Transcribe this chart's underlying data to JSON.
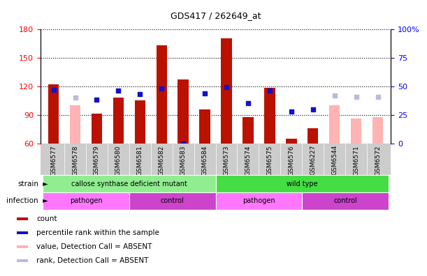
{
  "title": "GDS417 / 262649_at",
  "samples": [
    "GSM6577",
    "GSM6578",
    "GSM6579",
    "GSM6580",
    "GSM6581",
    "GSM6582",
    "GSM6583",
    "GSM6584",
    "GSM6573",
    "GSM6574",
    "GSM6575",
    "GSM6576",
    "GSM6227",
    "GSM6544",
    "GSM6571",
    "GSM6572"
  ],
  "red_values": [
    122,
    0,
    91,
    108,
    105,
    163,
    127,
    96,
    170,
    88,
    118,
    65,
    76,
    0,
    0,
    0
  ],
  "pink_values": [
    0,
    100,
    0,
    0,
    0,
    0,
    0,
    0,
    0,
    0,
    0,
    0,
    0,
    100,
    86,
    88
  ],
  "blue_values": [
    47,
    0,
    38,
    46,
    43,
    48,
    0,
    44,
    49,
    35,
    46,
    28,
    30,
    0,
    0,
    0
  ],
  "lblue_values": [
    0,
    40,
    0,
    0,
    0,
    0,
    0,
    0,
    0,
    0,
    0,
    0,
    0,
    42,
    41,
    41
  ],
  "absent_red": [
    false,
    true,
    false,
    false,
    false,
    false,
    false,
    false,
    false,
    false,
    false,
    false,
    false,
    true,
    true,
    true
  ],
  "ylim_left": [
    60,
    180
  ],
  "ylim_right": [
    0,
    100
  ],
  "yticks_left": [
    60,
    90,
    120,
    150,
    180
  ],
  "yticks_right": [
    0,
    25,
    50,
    75,
    100
  ],
  "strain_groups": [
    {
      "label": "callose synthase deficient mutant",
      "start": 0,
      "end": 8,
      "color": "#90EE90"
    },
    {
      "label": "wild type",
      "start": 8,
      "end": 16,
      "color": "#44DD44"
    }
  ],
  "infection_groups": [
    {
      "label": "pathogen",
      "start": 0,
      "end": 4,
      "color": "#FF77FF"
    },
    {
      "label": "control",
      "start": 4,
      "end": 8,
      "color": "#CC44CC"
    },
    {
      "label": "pathogen",
      "start": 8,
      "end": 12,
      "color": "#FF77FF"
    },
    {
      "label": "control",
      "start": 12,
      "end": 16,
      "color": "#CC44CC"
    }
  ],
  "bar_width": 0.5,
  "red_color": "#BB1100",
  "pink_color": "#FFB3B3",
  "blue_color": "#1111CC",
  "lblue_color": "#BBBBDD",
  "plot_bg": "#FFFFFF",
  "xtick_bg": "#CCCCCC"
}
